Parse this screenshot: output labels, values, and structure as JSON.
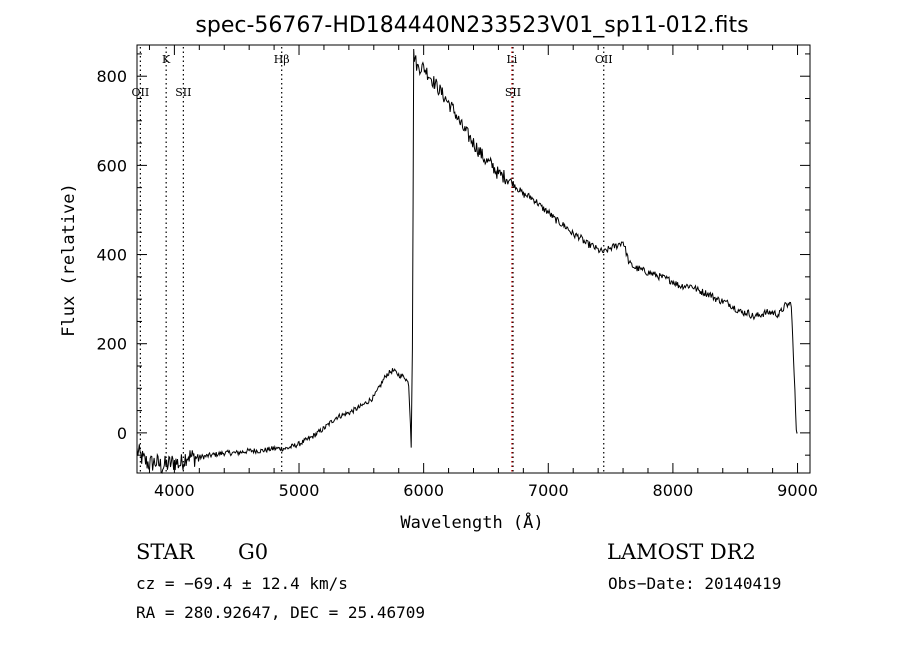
{
  "chart_data": {
    "type": "line",
    "title": "spec-56767-HD184440N233523V01_sp11-012.fits",
    "xlabel": "Wavelength (Å)",
    "ylabel": "Flux (relative)",
    "xlim": [
      3700,
      9100
    ],
    "ylim": [
      -90,
      870
    ],
    "xticks": [
      4000,
      5000,
      6000,
      7000,
      8000,
      9000
    ],
    "yticks": [
      0,
      200,
      400,
      600,
      800
    ],
    "grid": false,
    "series": [
      {
        "color": "#000000",
        "x": [
          3700,
          3750,
          3800,
          3850,
          3900,
          3950,
          4000,
          4050,
          4100,
          4150,
          4200,
          4300,
          4400,
          4500,
          4600,
          4700,
          4800,
          4900,
          5000,
          5100,
          5200,
          5300,
          5400,
          5500,
          5600,
          5650,
          5700,
          5750,
          5780,
          5800,
          5850,
          5880,
          5900,
          5910,
          5920,
          5930,
          5950,
          6000,
          6050,
          6100,
          6150,
          6200,
          6250,
          6300,
          6350,
          6400,
          6450,
          6500,
          6550,
          6600,
          6650,
          6700,
          6750,
          6800,
          6850,
          6900,
          6950,
          7000,
          7050,
          7100,
          7150,
          7200,
          7250,
          7300,
          7350,
          7400,
          7450,
          7500,
          7550,
          7600,
          7650,
          7700,
          7750,
          7800,
          7850,
          7900,
          7950,
          8000,
          8050,
          8100,
          8150,
          8200,
          8250,
          8300,
          8350,
          8400,
          8450,
          8500,
          8550,
          8600,
          8650,
          8700,
          8750,
          8800,
          8850,
          8900,
          8950,
          8990,
          9000
        ],
        "y": [
          -40,
          -60,
          -70,
          -65,
          -75,
          -70,
          -65,
          -70,
          -50,
          -55,
          -55,
          -50,
          -45,
          -45,
          -40,
          -40,
          -35,
          -35,
          -25,
          -10,
          10,
          35,
          45,
          60,
          80,
          105,
          130,
          140,
          135,
          130,
          125,
          110,
          -20,
          200,
          850,
          840,
          820,
          820,
          800,
          780,
          760,
          740,
          720,
          690,
          670,
          650,
          630,
          610,
          600,
          580,
          575,
          565,
          550,
          535,
          530,
          520,
          505,
          495,
          480,
          470,
          460,
          445,
          440,
          425,
          420,
          410,
          405,
          415,
          420,
          430,
          380,
          370,
          365,
          360,
          355,
          350,
          345,
          340,
          330,
          330,
          330,
          320,
          315,
          310,
          300,
          295,
          290,
          280,
          270,
          270,
          260,
          265,
          270,
          270,
          265,
          285,
          290,
          10,
          0
        ]
      }
    ],
    "line_markers": [
      {
        "label": "OII",
        "x": 3727,
        "color": "#000000",
        "pos": "low"
      },
      {
        "label": "K",
        "x": 3934,
        "color": "#000000",
        "pos": "high"
      },
      {
        "label": "SII",
        "x": 4072,
        "color": "#000000",
        "pos": "low"
      },
      {
        "label": "Hβ",
        "x": 4861,
        "color": "#000000",
        "pos": "high"
      },
      {
        "label": "Li",
        "x": 6708,
        "color": "#cc0000",
        "pos": "high"
      },
      {
        "label": "SII",
        "x": 6717,
        "color": "#000000",
        "pos": "low"
      },
      {
        "label": "OII",
        "x": 7445,
        "color": "#000000",
        "pos": "high"
      }
    ]
  },
  "info": {
    "class": "STAR",
    "subclass": "G0",
    "survey": "LAMOST DR2",
    "cz": "cz = −69.4 ± 12.4 km/s",
    "obs_date": "Obs−Date: 20140419",
    "coords": "RA = 280.92647, DEC =  25.46709"
  }
}
